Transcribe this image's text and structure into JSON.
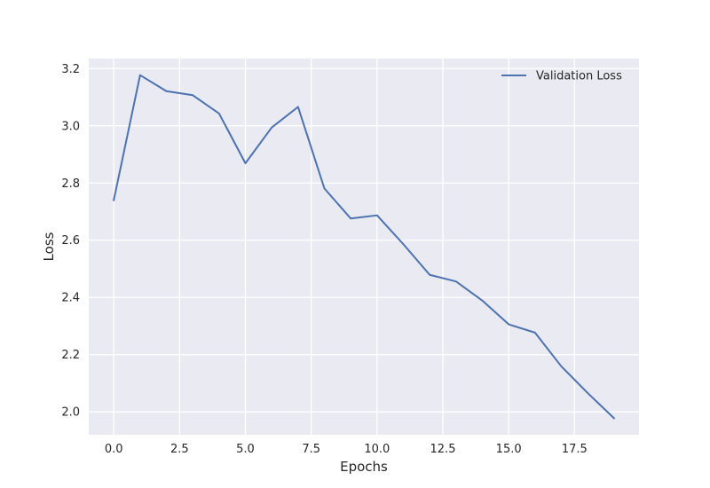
{
  "chart_data": {
    "type": "line",
    "title": "",
    "xlabel": "Epochs",
    "ylabel": "Loss",
    "xlim": [
      -0.95,
      19.95
    ],
    "ylim": [
      1.92,
      3.235
    ],
    "xticks": [
      0.0,
      2.5,
      5.0,
      7.5,
      10.0,
      12.5,
      15.0,
      17.5
    ],
    "xtick_labels": [
      "0.0",
      "2.5",
      "5.0",
      "7.5",
      "10.0",
      "12.5",
      "15.0",
      "17.5"
    ],
    "yticks": [
      2.0,
      2.2,
      2.4,
      2.6,
      2.8,
      3.0,
      3.2
    ],
    "ytick_labels": [
      "2.0",
      "2.2",
      "2.4",
      "2.6",
      "2.8",
      "3.0",
      "3.2"
    ],
    "grid": true,
    "legend_position": "top-right",
    "series": [
      {
        "name": "Validation Loss",
        "color": "#4c72b0",
        "x": [
          0,
          1,
          2,
          3,
          4,
          5,
          6,
          7,
          8,
          9,
          10,
          11,
          12,
          13,
          14,
          15,
          16,
          17,
          18,
          19
        ],
        "values": [
          2.74,
          3.177,
          3.121,
          3.107,
          3.043,
          2.869,
          2.994,
          3.066,
          2.781,
          2.676,
          2.687,
          2.586,
          2.479,
          2.456,
          2.389,
          2.306,
          2.277,
          2.159,
          2.066,
          1.978
        ]
      }
    ]
  },
  "style": {
    "plot_background": "#eaeaf2",
    "grid_color": "#ffffff",
    "text_color": "#262626"
  }
}
